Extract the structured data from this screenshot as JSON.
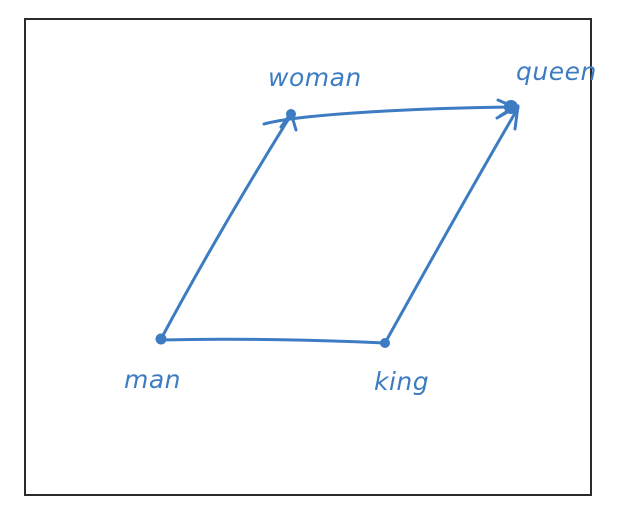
{
  "diagram": {
    "ink_color": "#3d7cc2",
    "border_color": "#2b2b2b",
    "nodes": {
      "man": {
        "label": "man"
      },
      "woman": {
        "label": "woman"
      },
      "king": {
        "label": "king"
      },
      "queen": {
        "label": "queen"
      }
    },
    "edges": [
      {
        "from": "man",
        "to": "woman",
        "arrow": true
      },
      {
        "from": "woman",
        "to": "queen",
        "arrow": true
      },
      {
        "from": "man",
        "to": "king",
        "arrow": false
      },
      {
        "from": "king",
        "to": "queen",
        "arrow": true
      }
    ]
  }
}
